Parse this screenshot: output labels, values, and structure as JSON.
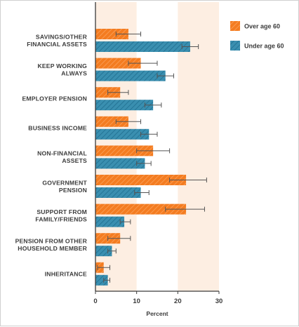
{
  "chart_data": {
    "type": "bar",
    "orientation": "horizontal",
    "categories": [
      [
        "SAVINGS/OTHER",
        "FINANCIAL ASSETS"
      ],
      [
        "KEEP WORKING",
        "ALWAYS"
      ],
      [
        "EMPLOYER PENSION"
      ],
      [
        "BUSINESS INCOME"
      ],
      [
        "NON-FINANCIAL",
        "ASSETS"
      ],
      [
        "GOVERNMENT",
        "PENSION"
      ],
      [
        "SUPPORT FROM",
        "FAMILY/FRIENDS"
      ],
      [
        "PENSION FROM OTHER",
        "HOUSEHOLD MEMBER"
      ],
      [
        "INHERITANCE"
      ]
    ],
    "series": [
      {
        "name": "Over age 60",
        "color": "#f47c20",
        "values": [
          8,
          11,
          6,
          8,
          14,
          22,
          22,
          6,
          2
        ],
        "error_low": [
          5,
          8,
          3,
          5,
          10,
          18,
          17,
          3,
          0.5
        ],
        "error_high": [
          11,
          15,
          8,
          11,
          18,
          27,
          26.5,
          8.5,
          3.5
        ]
      },
      {
        "name": "Under age 60",
        "color": "#3a8fb0",
        "values": [
          23,
          17,
          14,
          13,
          12,
          11,
          7,
          4,
          3
        ],
        "error_low": [
          21,
          15,
          12,
          11,
          10,
          9.5,
          6,
          3,
          2
        ],
        "error_high": [
          25,
          19,
          16,
          15,
          13.5,
          13,
          8.5,
          5,
          3.5
        ]
      }
    ],
    "xlabel": "Percent",
    "xlim": [
      0,
      30
    ],
    "xticks": [
      0,
      10,
      20,
      30
    ],
    "shaded_bands": [
      [
        0,
        10
      ],
      [
        20,
        30
      ]
    ],
    "band_color": "#fdeee2",
    "legend_position": "top-right",
    "error_bars": true
  }
}
